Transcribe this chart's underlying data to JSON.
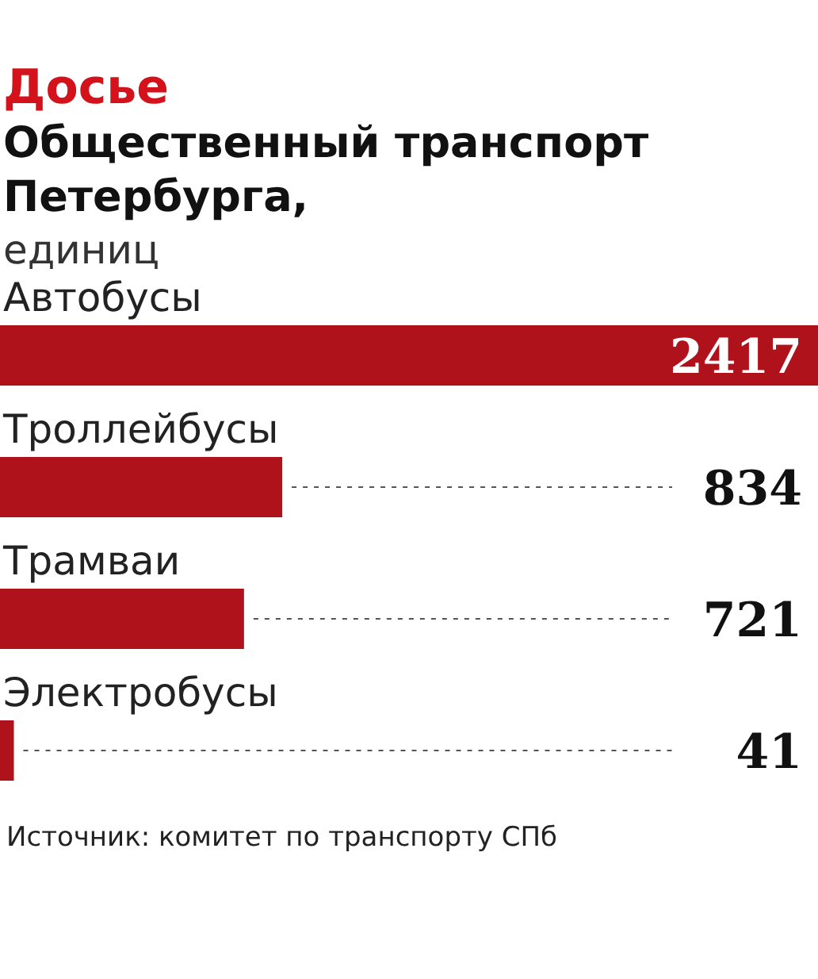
{
  "chart_data": {
    "type": "bar",
    "orientation": "horizontal",
    "title": "Досье",
    "subtitle": "Общественный транспорт Петербурга,",
    "xlabel": "единиц",
    "categories": [
      "Автобусы",
      "Троллейбусы",
      "Трамваи",
      "Электробусы"
    ],
    "values": [
      2417,
      834,
      721,
      41
    ],
    "color": "#b0121b",
    "data_labels": true,
    "annotations": [
      "Источник: комитет по транспорту СПб"
    ]
  }
}
